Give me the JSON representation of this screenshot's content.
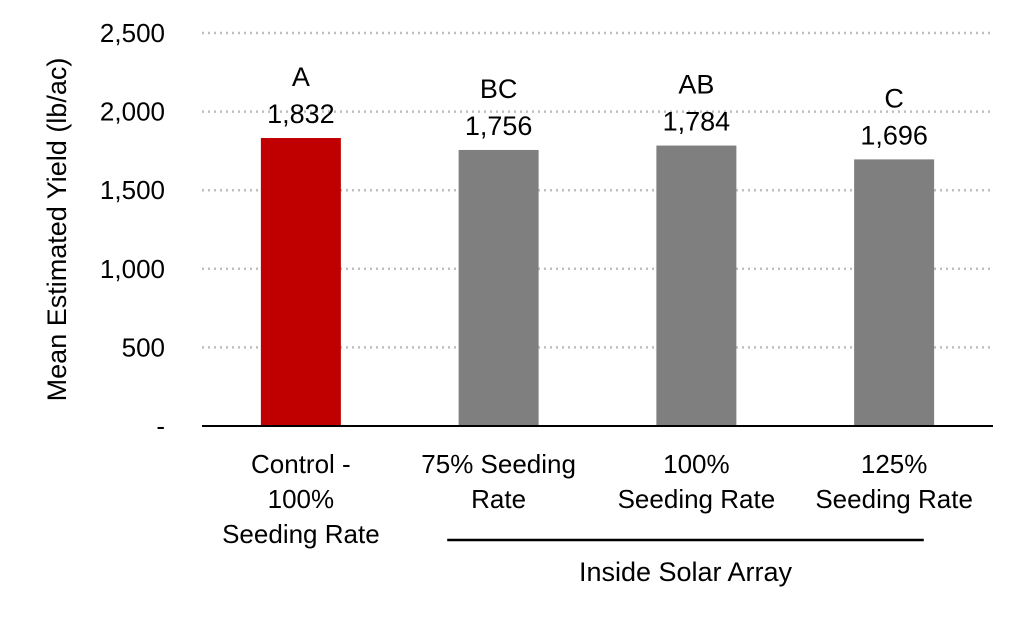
{
  "chart_data": {
    "type": "bar",
    "title": "",
    "xlabel": "",
    "ylabel": "Mean Estimated Yield (lb/ac)",
    "ylim": [
      0,
      2500
    ],
    "yticks": [
      0,
      500,
      1000,
      1500,
      2000,
      2500
    ],
    "ytick_labels": [
      "-",
      "500",
      "1,000",
      "1,500",
      "2,000",
      "2,500"
    ],
    "categories": [
      [
        "Control -",
        "100%",
        "Seeding Rate"
      ],
      [
        "75% Seeding",
        "Rate"
      ],
      [
        "100%",
        "Seeding Rate"
      ],
      [
        "125%",
        "Seeding Rate"
      ]
    ],
    "values": [
      1832,
      1756,
      1784,
      1696
    ],
    "value_labels": [
      "1,832",
      "1,756",
      "1,784",
      "1,696"
    ],
    "significance_letters": [
      "A",
      "BC",
      "AB",
      "C"
    ],
    "bar_colors": [
      "#c00000",
      "#7f7f7f",
      "#7f7f7f",
      "#7f7f7f"
    ],
    "grid": true,
    "group_label": {
      "text": "Inside Solar Array",
      "spans_categories": [
        1,
        2,
        3
      ]
    }
  }
}
